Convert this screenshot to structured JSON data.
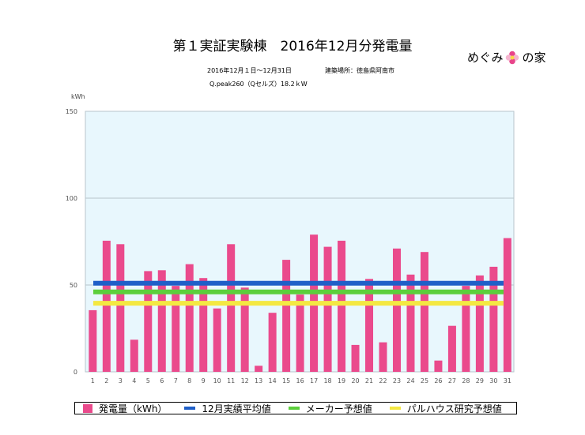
{
  "header": {
    "title": "第１実証実験棟　2016年12月分発電量",
    "period": "2016年12月１日〜12月31日",
    "location": "建築場所：徳島県阿南市",
    "system": "Q.peak260（Qセルズ）18.2ｋW",
    "logo_left": "めぐみ",
    "logo_right": "の家"
  },
  "chart_data": {
    "type": "bar",
    "ylabel": "kWh",
    "ylim": [
      0,
      150
    ],
    "yticks": [
      0,
      50,
      100,
      150
    ],
    "categories": [
      "1",
      "2",
      "3",
      "4",
      "5",
      "6",
      "7",
      "8",
      "9",
      "10",
      "11",
      "12",
      "13",
      "14",
      "15",
      "16",
      "17",
      "18",
      "19",
      "20",
      "21",
      "22",
      "23",
      "24",
      "25",
      "26",
      "27",
      "28",
      "29",
      "30",
      "31"
    ],
    "series": [
      {
        "name": "発電量（kWh）",
        "color": "#ea4a8c",
        "values": [
          35.5,
          75.5,
          73.5,
          18.5,
          58,
          58.5,
          49.5,
          62,
          54,
          36.5,
          73.5,
          48.5,
          3.5,
          34,
          64.5,
          44.5,
          79,
          72,
          75.5,
          15.5,
          53.5,
          17,
          71,
          56,
          69,
          6.5,
          26.5,
          49.5,
          55.5,
          60.5,
          77
        ]
      }
    ],
    "reference_lines": [
      {
        "name": "12月実績平均値",
        "value": 51,
        "color": "#1f5fc8"
      },
      {
        "name": "メーカー予想値",
        "value": 46,
        "color": "#5ccf3c"
      },
      {
        "name": "パルハウス研究予想値",
        "value": 39.5,
        "color": "#f4e842"
      }
    ],
    "plot_bg": "#e8f7fd",
    "grid": true
  }
}
